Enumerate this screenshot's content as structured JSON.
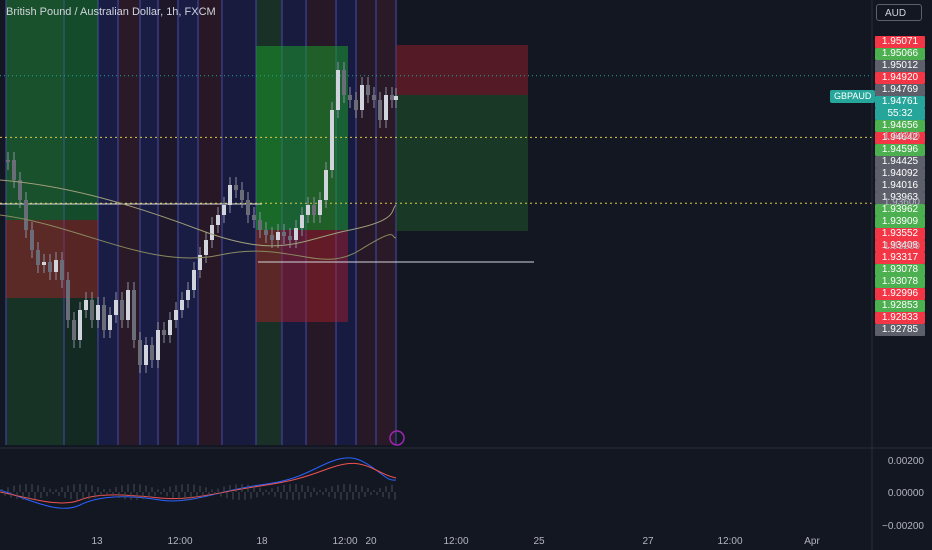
{
  "header": {
    "title": "British Pound / Australian Dollar, 1h, FXCM",
    "currency": "AUD",
    "symbol_tag": "GBPAUD"
  },
  "colors": {
    "background": "#131722",
    "up": "#26a69a",
    "down": "#ef5350",
    "green_tag": "#4caf50",
    "red_tag": "#f23645",
    "gray_tag": "#5d606b",
    "dotted_line": "#d9c94a"
  },
  "chart_data": {
    "type": "candlestick",
    "ylim": [
      1.914,
      1.9525
    ],
    "y_ticks": [
      "1.94200",
      "1.93600",
      "1.93200"
    ],
    "x_ticks": [
      "13",
      "12:00",
      "18",
      "12:00",
      "20",
      "12:00",
      "25",
      "27",
      "12:00",
      "Apr"
    ],
    "price_tags": [
      {
        "label": "1.95071",
        "value": 1.95071,
        "color": "red"
      },
      {
        "label": "1.95066",
        "value": 1.95066,
        "color": "green"
      },
      {
        "label": "1.95012",
        "value": 1.95012,
        "color": "gray"
      },
      {
        "label": "1.94920",
        "value": 1.9492,
        "color": "red"
      },
      {
        "label": "1.94769",
        "value": 1.94769,
        "color": "gray"
      },
      {
        "label": "1.94761",
        "value": 1.94761,
        "color": "teal",
        "sub": "55:32"
      },
      {
        "label": "1.94656",
        "value": 1.94656,
        "color": "green"
      },
      {
        "label": "1.94642",
        "value": 1.94642,
        "color": "red"
      },
      {
        "label": "1.94596",
        "value": 1.94596,
        "color": "green"
      },
      {
        "label": "1.94425",
        "value": 1.94425,
        "color": "gray"
      },
      {
        "label": "1.94092",
        "value": 1.94092,
        "color": "gray"
      },
      {
        "label": "1.94016",
        "value": 1.94016,
        "color": "gray"
      },
      {
        "label": "1.93963",
        "value": 1.93963,
        "color": "gray"
      },
      {
        "label": "1.93962",
        "value": 1.93962,
        "color": "green"
      },
      {
        "label": "1.93909",
        "value": 1.93909,
        "color": "green"
      },
      {
        "label": "1.93552",
        "value": 1.93552,
        "color": "red"
      },
      {
        "label": "1.93408",
        "value": 1.93408,
        "color": "red"
      },
      {
        "label": "1.93317",
        "value": 1.93317,
        "color": "red"
      },
      {
        "label": "1.93078",
        "value": 1.93078,
        "color": "green"
      },
      {
        "label": "1.93078",
        "value": 1.93078,
        "color": "green"
      },
      {
        "label": "1.92996",
        "value": 1.92996,
        "color": "red"
      },
      {
        "label": "1.92853",
        "value": 1.92853,
        "color": "green"
      },
      {
        "label": "1.92833",
        "value": 1.92833,
        "color": "red"
      },
      {
        "label": "1.92785",
        "value": 1.92785,
        "color": "gray"
      }
    ],
    "current_price": 1.94761,
    "horizontal_levels": [
      1.942,
      1.936
    ],
    "indicator": {
      "y_ticks": [
        "0.00200",
        "0.00000",
        "−0.00200"
      ]
    }
  }
}
